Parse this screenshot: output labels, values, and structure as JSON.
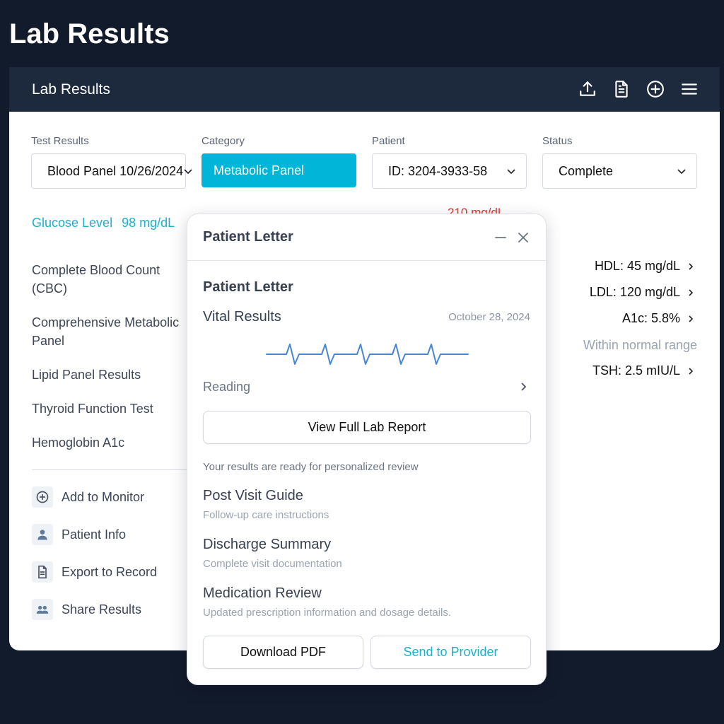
{
  "page": {
    "title": "Lab Results"
  },
  "card": {
    "title": "Lab Results",
    "header_icons": [
      "upload-icon",
      "document-icon",
      "add-circle-icon",
      "menu-icon"
    ]
  },
  "filters": [
    {
      "label": "Test Results",
      "value": "Blood Panel 10/26/2024"
    },
    {
      "label": "Category",
      "value": "Metabolic Panel"
    },
    {
      "label": "Patient",
      "value": "ID: 3204-3933-58"
    },
    {
      "label": "Status",
      "value": "Complete"
    }
  ],
  "glucose": {
    "label": "Glucose Level",
    "value": "98 mg/dL"
  },
  "partial_value": "210 mg/dL",
  "tests": [
    "Complete Blood Count (CBC)",
    "Comprehensive Metabolic Panel",
    "Lipid Panel Results",
    "Thyroid Function Test",
    "Hemoglobin A1c"
  ],
  "actions": [
    {
      "label": "Add to Monitor",
      "icon": "add-circle-icon"
    },
    {
      "label": "Patient Info",
      "icon": "user-icon"
    },
    {
      "label": "Export to Record",
      "icon": "document-icon"
    },
    {
      "label": "Share Results",
      "icon": "users-icon"
    }
  ],
  "metrics": {
    "hdl": "HDL: 45 mg/dL",
    "ldl": "LDL: 120 mg/dL",
    "a1c": "A1c: 5.8%",
    "normal_note": "Within normal range",
    "tsh": "TSH: 2.5 mIU/L"
  },
  "modal": {
    "title": "Patient Letter",
    "section_title": "Patient Letter",
    "vital_label": "Vital Results",
    "date": "October 28, 2024",
    "reading_label": "Reading",
    "view_report_label": "View Full Lab Report",
    "ready_text": "Your results are ready for personalized review",
    "guides": [
      {
        "title": "Post Visit Guide",
        "subtitle": "Follow-up care instructions"
      },
      {
        "title": "Discharge Summary",
        "subtitle": "Complete visit documentation"
      },
      {
        "title": "Medication Review",
        "subtitle": "Updated prescription information and dosage details."
      }
    ],
    "download_label": "Download PDF",
    "send_label": "Send to Provider"
  },
  "colors": {
    "background": "#121b2c",
    "header": "#1d2a3d",
    "accent": "#00b5d8",
    "alert": "#e0322f",
    "ecg": "#4a86d0"
  }
}
